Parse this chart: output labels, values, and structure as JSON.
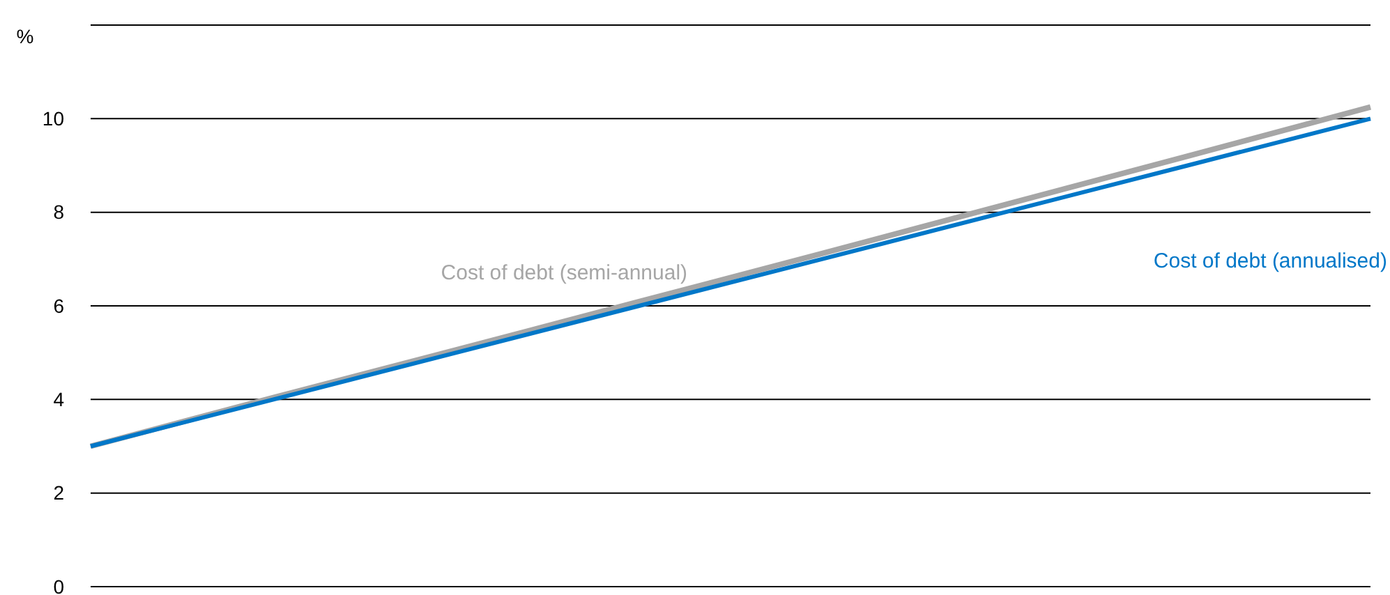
{
  "chart_data": {
    "type": "line",
    "ylabel": "%",
    "categories": [
      null,
      null,
      null,
      null,
      null,
      null,
      null,
      null
    ],
    "series": [
      {
        "name": "Cost of debt (semi-annual)",
        "color": "#a6a6a6",
        "values": [
          3.0,
          4.04,
          5.06,
          6.09,
          7.12,
          8.16,
          9.2,
          10.25
        ]
      },
      {
        "name": "Cost of debt (annualised)",
        "color": "#0077c8",
        "values": [
          3,
          4,
          5,
          6,
          7,
          8,
          9,
          10
        ]
      }
    ],
    "ylim": [
      0,
      12
    ],
    "yticks": [
      0,
      2,
      4,
      6,
      8,
      10,
      {
        "value": 12,
        "label": null
      }
    ],
    "grid": "y",
    "tick_labels": "y",
    "marker": "none",
    "line_style": "solid"
  }
}
